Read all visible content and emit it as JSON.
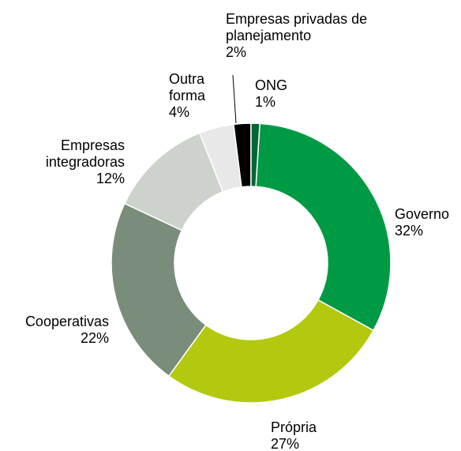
{
  "chart_data": {
    "type": "donut",
    "categories": [
      "ONG",
      "Governo",
      "Própria",
      "Cooperativas",
      "Empresas integradoras",
      "Outra forma",
      "Empresas privadas de planejamento"
    ],
    "values": [
      1,
      32,
      27,
      22,
      12,
      4,
      2
    ],
    "value_labels": [
      "1%",
      "32%",
      "27%",
      "22%",
      "12%",
      "4%",
      "2%"
    ],
    "colors": [
      "#006633",
      "#009a44",
      "#b2c90f",
      "#7a8c7a",
      "#cdd3cc",
      "#e8e8e8",
      "#000000"
    ]
  }
}
